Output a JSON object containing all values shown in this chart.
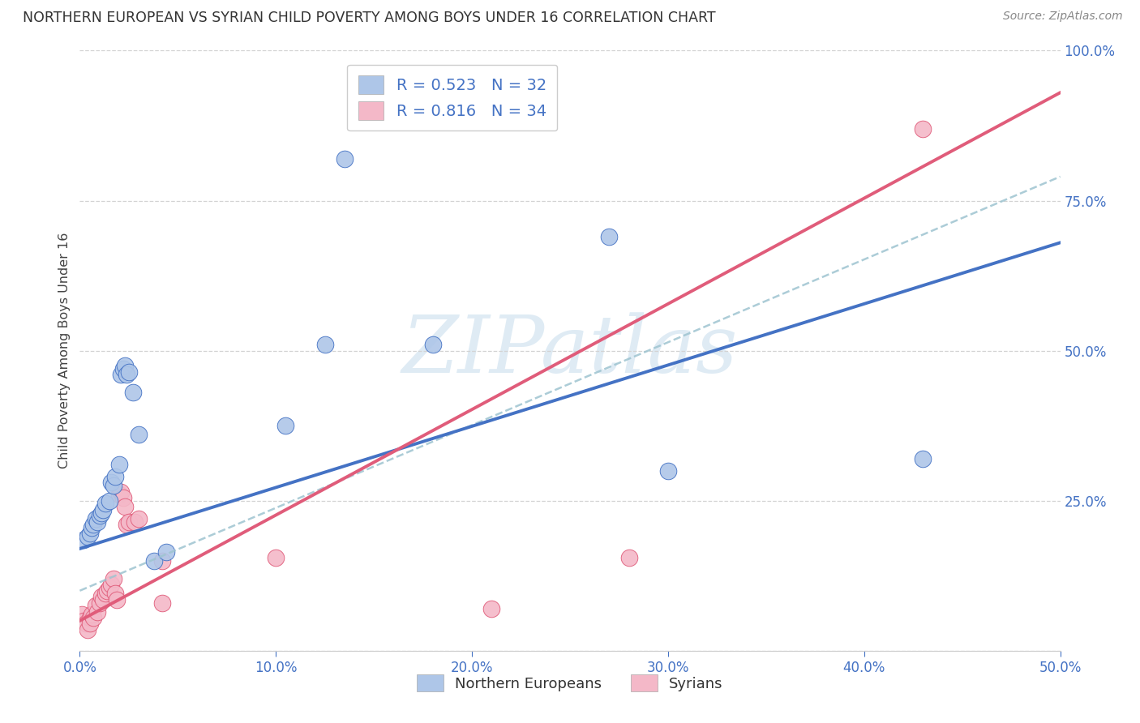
{
  "title": "NORTHERN EUROPEAN VS SYRIAN CHILD POVERTY AMONG BOYS UNDER 16 CORRELATION CHART",
  "source": "Source: ZipAtlas.com",
  "ylabel_label": "Child Poverty Among Boys Under 16",
  "xlim": [
    0,
    0.5
  ],
  "ylim": [
    0,
    1.0
  ],
  "legend_entries": [
    {
      "label": "R = 0.523   N = 32",
      "color": "#aec6e8"
    },
    {
      "label": "R = 0.816   N = 34",
      "color": "#f4b8c8"
    }
  ],
  "legend_bottom": [
    "Northern Europeans",
    "Syrians"
  ],
  "watermark": "ZIPatlas",
  "blue_scatter": [
    [
      0.002,
      0.185
    ],
    [
      0.004,
      0.19
    ],
    [
      0.005,
      0.195
    ],
    [
      0.006,
      0.205
    ],
    [
      0.007,
      0.21
    ],
    [
      0.008,
      0.22
    ],
    [
      0.009,
      0.215
    ],
    [
      0.01,
      0.225
    ],
    [
      0.011,
      0.23
    ],
    [
      0.012,
      0.235
    ],
    [
      0.013,
      0.245
    ],
    [
      0.015,
      0.25
    ],
    [
      0.016,
      0.28
    ],
    [
      0.017,
      0.275
    ],
    [
      0.018,
      0.29
    ],
    [
      0.02,
      0.31
    ],
    [
      0.021,
      0.46
    ],
    [
      0.022,
      0.47
    ],
    [
      0.023,
      0.475
    ],
    [
      0.024,
      0.46
    ],
    [
      0.025,
      0.465
    ],
    [
      0.027,
      0.43
    ],
    [
      0.03,
      0.36
    ],
    [
      0.038,
      0.15
    ],
    [
      0.044,
      0.165
    ],
    [
      0.105,
      0.375
    ],
    [
      0.125,
      0.51
    ],
    [
      0.135,
      0.82
    ],
    [
      0.27,
      0.69
    ],
    [
      0.3,
      0.3
    ],
    [
      0.43,
      0.32
    ],
    [
      0.18,
      0.51
    ]
  ],
  "pink_scatter": [
    [
      0.001,
      0.06
    ],
    [
      0.002,
      0.05
    ],
    [
      0.003,
      0.045
    ],
    [
      0.004,
      0.035
    ],
    [
      0.005,
      0.055
    ],
    [
      0.005,
      0.045
    ],
    [
      0.006,
      0.06
    ],
    [
      0.007,
      0.055
    ],
    [
      0.008,
      0.075
    ],
    [
      0.009,
      0.065
    ],
    [
      0.01,
      0.08
    ],
    [
      0.011,
      0.09
    ],
    [
      0.012,
      0.085
    ],
    [
      0.013,
      0.095
    ],
    [
      0.014,
      0.1
    ],
    [
      0.015,
      0.105
    ],
    [
      0.016,
      0.11
    ],
    [
      0.017,
      0.12
    ],
    [
      0.018,
      0.095
    ],
    [
      0.019,
      0.085
    ],
    [
      0.02,
      0.26
    ],
    [
      0.021,
      0.265
    ],
    [
      0.022,
      0.255
    ],
    [
      0.023,
      0.24
    ],
    [
      0.024,
      0.21
    ],
    [
      0.025,
      0.215
    ],
    [
      0.028,
      0.215
    ],
    [
      0.03,
      0.22
    ],
    [
      0.042,
      0.15
    ],
    [
      0.042,
      0.08
    ],
    [
      0.1,
      0.155
    ],
    [
      0.21,
      0.07
    ],
    [
      0.43,
      0.87
    ],
    [
      0.28,
      0.155
    ]
  ],
  "blue_line_x": [
    0.0,
    0.5
  ],
  "blue_line_y": [
    0.17,
    0.68
  ],
  "pink_line_x": [
    0.0,
    0.5
  ],
  "pink_line_y": [
    0.05,
    0.93
  ],
  "dashed_line_x": [
    0.0,
    0.5
  ],
  "dashed_line_y": [
    0.1,
    0.79
  ],
  "blue_line_color": "#4472c4",
  "pink_line_color": "#e05c7a",
  "dashed_line_color": "#9ec4d0",
  "scatter_blue_color": "#aec6e8",
  "scatter_pink_color": "#f4b8c8",
  "grid_color": "#d3d3d3",
  "background_color": "#ffffff",
  "title_color": "#333333",
  "axis_label_color": "#4472c4",
  "source_color": "#888888"
}
